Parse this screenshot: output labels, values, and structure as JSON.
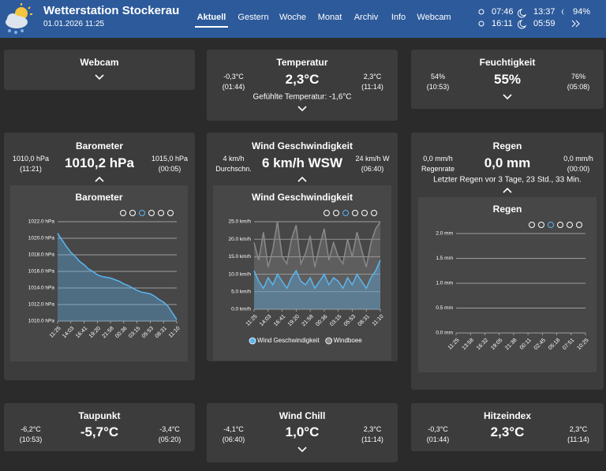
{
  "header": {
    "title": "Wetterstation Stockerau",
    "date": "01.01.2026 11:25",
    "nav": [
      "Aktuell",
      "Gestern",
      "Woche",
      "Monat",
      "Archiv",
      "Info",
      "Webcam"
    ],
    "active": 0,
    "sunrise": "07:46",
    "sunset": "16:11",
    "moonrise": "13:37",
    "moonset": "05:59",
    "moon_phase": "94%"
  },
  "cards": [
    {
      "title": "Webcam"
    },
    {
      "title": "Temperatur",
      "left": [
        "-0,3°C",
        "(01:44)"
      ],
      "value": "2,3°C",
      "right": [
        "2,3°C",
        "(11:14)"
      ],
      "note": "Gefühlte Temperatur: -1,6°C"
    },
    {
      "title": "Feuchtigkeit",
      "left": [
        "54%",
        "(10:53)"
      ],
      "value": "55%",
      "right": [
        "76%",
        "(05:08)"
      ]
    },
    {
      "title": "Barometer",
      "left": [
        "1010,0 hPa",
        "(11:21)"
      ],
      "value": "1010,2 hPa",
      "right": [
        "1015,0 hPa",
        "(00:05)"
      ]
    },
    {
      "title": "Wind Geschwindigkeit",
      "left": [
        "4 km/h",
        "Durchschn."
      ],
      "value": "6 km/h WSW",
      "right": [
        "24 km/h W",
        "(06:40)"
      ]
    },
    {
      "title": "Regen",
      "left": [
        "0,0 mm/h",
        "Regenrate"
      ],
      "value": "0,0 mm",
      "right": [
        "0,0 mm/h",
        "(00:00)"
      ],
      "note": "Letzter Regen vor 3 Tage, 23 Std., 33 Min."
    },
    {
      "title": "Taupunkt",
      "left": [
        "-6,2°C",
        "(10:53)"
      ],
      "value": "-5,7°C",
      "right": [
        "-3,4°C",
        "(05:20)"
      ]
    },
    {
      "title": "Wind Chill",
      "left": [
        "-4,1°C",
        "(06:40)"
      ],
      "value": "1,0°C",
      "right": [
        "2,3°C",
        "(11:14)"
      ]
    },
    {
      "title": "Hitzeindex",
      "left": [
        "-0,3°C",
        "(01:44)"
      ],
      "value": "2,3°C",
      "right": [
        "2,3°C",
        "(11:14)"
      ]
    }
  ],
  "charts": [
    {
      "type": "line",
      "title": "Barometer",
      "ylim": [
        1010,
        1022
      ],
      "yticks": [
        {
          "value": 1010,
          "label": "1010.0 hPa"
        },
        {
          "value": 1012,
          "label": "1012.0 hPa"
        },
        {
          "value": 1014,
          "label": "1014.0 hPa"
        },
        {
          "value": 1016,
          "label": "1016.0 hPa"
        },
        {
          "value": 1018,
          "label": "1018.0 hPa"
        },
        {
          "value": 1020,
          "label": "1020.0 hPa"
        },
        {
          "value": 1022,
          "label": "1022.0 hPa"
        }
      ],
      "xlim": [
        0,
        27
      ],
      "xticks": [
        {
          "value": 0,
          "label": "11:25"
        },
        {
          "value": 3,
          "label": "14:03"
        },
        {
          "value": 6,
          "label": "16:41"
        },
        {
          "value": 9,
          "label": "19:20"
        },
        {
          "value": 12,
          "label": "21:58"
        },
        {
          "value": 15,
          "label": "00:36"
        },
        {
          "value": 18,
          "label": "03:15"
        },
        {
          "value": 21,
          "label": "05:53"
        },
        {
          "value": 24,
          "label": "08:31"
        },
        {
          "value": 27,
          "label": "11:10"
        }
      ],
      "series": [
        {
          "name": "Barometer",
          "color": "#5bb5f0",
          "values": [
            1020.6,
            1019.8,
            1019.0,
            1018.3,
            1017.8,
            1017.2,
            1016.8,
            1016.3,
            1016.0,
            1015.6,
            1015.4,
            1015.3,
            1015.2,
            1015.0,
            1014.8,
            1014.5,
            1014.3,
            1014.0,
            1013.7,
            1013.5,
            1013.4,
            1013.3,
            1013.0,
            1012.6,
            1012.3,
            1011.8,
            1011.0,
            1010.2
          ]
        }
      ]
    },
    {
      "type": "line",
      "title": "Wind Geschwindigkeit",
      "ylim": [
        0,
        25
      ],
      "yticks": [
        {
          "value": 0,
          "label": "0.0 km/h"
        },
        {
          "value": 5,
          "label": "5.0 km/h"
        },
        {
          "value": 10,
          "label": "10.0 km/h"
        },
        {
          "value": 15,
          "label": "15.0 km/h"
        },
        {
          "value": 20,
          "label": "20.0 km/h"
        },
        {
          "value": 25,
          "label": "25.0 km/h"
        }
      ],
      "xlim": [
        0,
        27
      ],
      "xticks": [
        {
          "value": 0,
          "label": "11:25"
        },
        {
          "value": 3,
          "label": "14:03"
        },
        {
          "value": 6,
          "label": "16:41"
        },
        {
          "value": 9,
          "label": "19:20"
        },
        {
          "value": 12,
          "label": "21:58"
        },
        {
          "value": 15,
          "label": "00:36"
        },
        {
          "value": 18,
          "label": "03:15"
        },
        {
          "value": 21,
          "label": "05:53"
        },
        {
          "value": 24,
          "label": "08:31"
        },
        {
          "value": 27,
          "label": "11:10"
        }
      ],
      "series": [
        {
          "name": "Windboee",
          "color": "#8a8a8a",
          "values": [
            19,
            14,
            22,
            12,
            17,
            25,
            15,
            13,
            20,
            24,
            13,
            16,
            21,
            12,
            18,
            23,
            14,
            19,
            15,
            13,
            20,
            15,
            22,
            17,
            12,
            19,
            23,
            25
          ]
        },
        {
          "name": "Wind Geschwindigkeit",
          "color": "#5bb5f0",
          "values": [
            11,
            8,
            6,
            9,
            7,
            10,
            8,
            6,
            9,
            11,
            8,
            7,
            9,
            6,
            8,
            10,
            7,
            9,
            8,
            6,
            9,
            7,
            10,
            8,
            6,
            9,
            11,
            14
          ]
        }
      ],
      "legend": "bottom"
    },
    {
      "type": "line",
      "title": "Regen",
      "ylim": [
        0,
        2
      ],
      "yticks": [
        {
          "value": 0,
          "label": "0.0 mm"
        },
        {
          "value": 0.5,
          "label": "0.5 mm"
        },
        {
          "value": 1,
          "label": "1.0 mm"
        },
        {
          "value": 1.5,
          "label": "1.5 mm"
        },
        {
          "value": 2,
          "label": "2.0 mm"
        }
      ],
      "xlim": [
        0,
        9
      ],
      "xticks": [
        {
          "value": 0,
          "label": "11:25"
        },
        {
          "value": 1,
          "label": "13:58"
        },
        {
          "value": 2,
          "label": "16:32"
        },
        {
          "value": 3,
          "label": "19:05"
        },
        {
          "value": 4,
          "label": "21:38"
        },
        {
          "value": 5,
          "label": "00:11"
        },
        {
          "value": 6,
          "label": "02:45"
        },
        {
          "value": 7,
          "label": "05:18"
        },
        {
          "value": 8,
          "label": "07:51"
        },
        {
          "value": 9,
          "label": "10:25"
        }
      ],
      "series": []
    }
  ]
}
